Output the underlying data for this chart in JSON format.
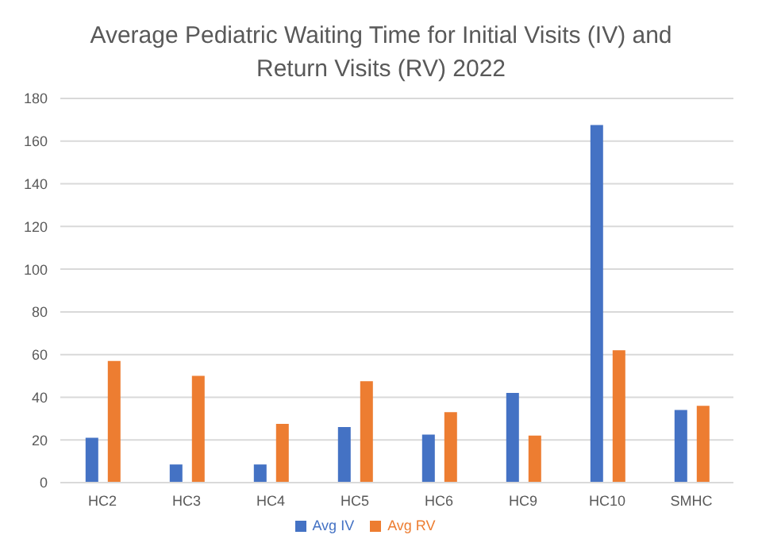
{
  "chart_data": {
    "type": "bar",
    "title": "Average Pediatric Waiting Time for Initial Visits (IV) and Return Visits (RV) 2022",
    "categories": [
      "HC2",
      "HC3",
      "HC4",
      "HC5",
      "HC6",
      "HC9",
      "HC10",
      "SMHC"
    ],
    "series": [
      {
        "name": "Avg IV",
        "color": "#4472c4",
        "values": [
          21,
          8.5,
          8.5,
          26,
          22.5,
          42,
          167.5,
          34
        ]
      },
      {
        "name": "Avg RV",
        "color": "#ed7d31",
        "values": [
          57,
          50,
          27.5,
          47.5,
          33,
          22,
          62,
          36
        ]
      }
    ],
    "ylim": [
      0,
      180
    ],
    "yticks": [
      0,
      20,
      40,
      60,
      80,
      100,
      120,
      140,
      160,
      180
    ],
    "grid": "y",
    "legend": "bottom"
  }
}
